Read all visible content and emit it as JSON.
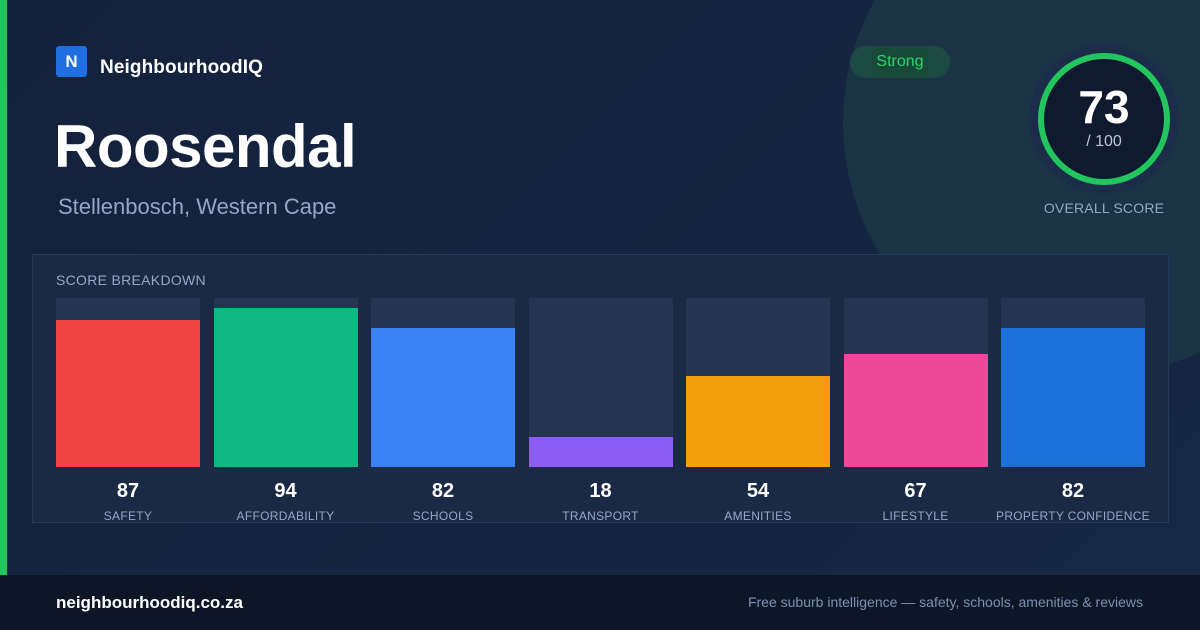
{
  "brand": {
    "logo_letter": "N",
    "name": "NeighbourhoodIQ"
  },
  "suburb": {
    "name": "Roosendal",
    "region": "Stellenbosch, Western Cape"
  },
  "badge": {
    "label": "Strong",
    "color": "#2ed36a"
  },
  "overall": {
    "score": "73",
    "max": "/ 100",
    "caption": "OVERALL SCORE",
    "fraction": 0.73,
    "ring_color": "#22c55e"
  },
  "breakdown": {
    "title": "SCORE BREAKDOWN",
    "items": [
      {
        "value": "87",
        "label": "SAFETY",
        "score": 87,
        "color": "#ef4444"
      },
      {
        "value": "94",
        "label": "AFFORDABILITY",
        "score": 94,
        "color": "#10b981"
      },
      {
        "value": "82",
        "label": "SCHOOLS",
        "score": 82,
        "color": "#3b82f6"
      },
      {
        "value": "18",
        "label": "TRANSPORT",
        "score": 18,
        "color": "#8b5cf6"
      },
      {
        "value": "54",
        "label": "AMENITIES",
        "score": 54,
        "color": "#f59e0b"
      },
      {
        "value": "67",
        "label": "LIFESTYLE",
        "score": 67,
        "color": "#ec4899"
      },
      {
        "value": "82",
        "label": "PROPERTY CONFIDENCE",
        "score": 82,
        "color": "#1d6fd9"
      }
    ]
  },
  "footer": {
    "url": "neighbourhoodiq.co.za",
    "tagline": "Free suburb intelligence — safety, schools, amenities & reviews"
  }
}
